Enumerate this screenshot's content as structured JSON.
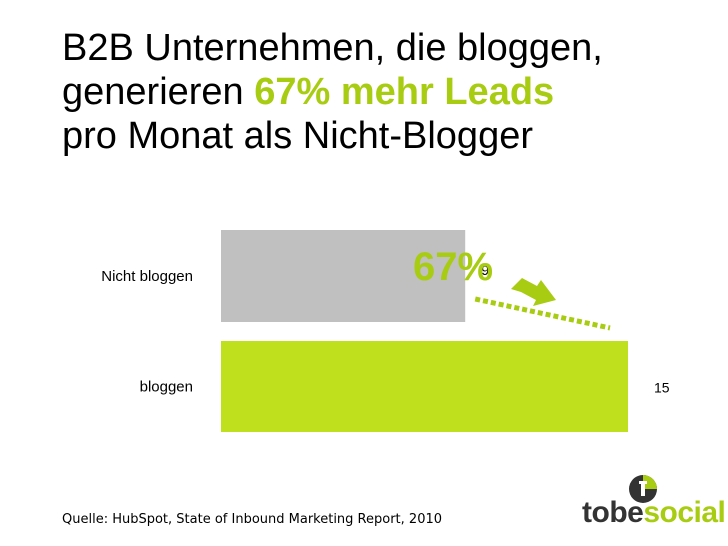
{
  "title": {
    "line1": "B2B Unternehmen, die bloggen,",
    "line2_prefix": "generieren ",
    "line2_highlight": "67% mehr Leads",
    "line3": "pro Monat als Nicht-Blogger"
  },
  "chart_data": {
    "type": "bar",
    "orientation": "horizontal",
    "categories": [
      "Nicht bloggen",
      "bloggen"
    ],
    "values": [
      9,
      15
    ],
    "xlim": [
      0,
      15
    ],
    "grid": false,
    "legend": "none",
    "bar_colors": [
      "#c0c0c0",
      "#bfe01c"
    ],
    "annotation": "67%",
    "annotation_color": "#a8cc12",
    "arrow_color": "#a8cc12"
  },
  "source": "Quelle: HubSpot, State of Inbound Marketing Report,  2010",
  "logo": {
    "text_dark": "tobe",
    "text_accent": "social",
    "icon": "tobesocial-logo-icon",
    "accent_color": "#a8cc12",
    "dark_color": "#333333"
  }
}
